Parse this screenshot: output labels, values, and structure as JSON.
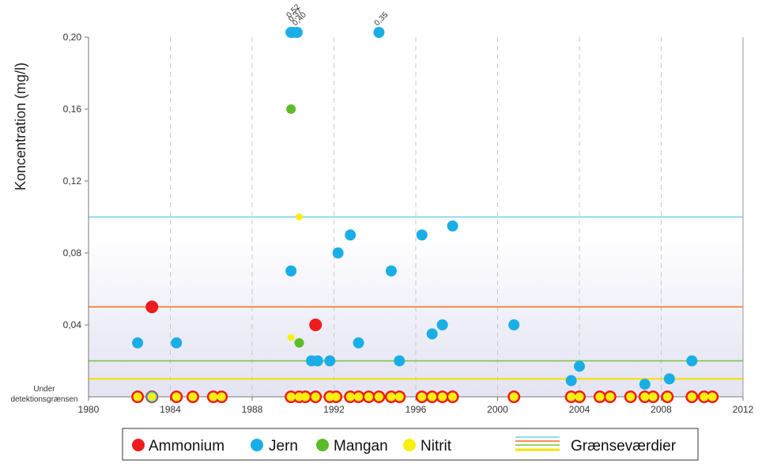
{
  "chart_data": {
    "type": "scatter",
    "ylabel": "Koncentration (mg/l)",
    "xlabel": "",
    "xlim": [
      1980,
      2012
    ],
    "ylim": [
      0,
      0.2
    ],
    "xticks": [
      1980,
      1984,
      1988,
      1992,
      1996,
      2000,
      2004,
      2008,
      2012
    ],
    "xtick_labels": [
      "1980",
      "1984",
      "1988",
      "1992",
      "1996",
      "2000",
      "2004",
      "2008",
      "2012"
    ],
    "yticks": [
      0.04,
      0.08,
      0.12,
      0.16,
      0.2
    ],
    "ytick_labels": [
      "0,04",
      "0,08",
      "0,12",
      "0,16",
      "0,20"
    ],
    "below_detection_label": [
      "Under",
      "detektionsgrænsen"
    ],
    "grid": "vertical dashed",
    "background_gradient": "light lavender below 0.05 fading upward",
    "outlier_labels": [
      {
        "x": 1989.9,
        "text": "0,52"
      },
      {
        "x": 1990.0,
        "text": "0,37"
      },
      {
        "x": 1990.2,
        "text": "0,40"
      },
      {
        "x": 1994.2,
        "text": "0,35"
      }
    ],
    "thresholds": [
      {
        "name": "Jern",
        "value": 0.1,
        "color": "#6fcfe6"
      },
      {
        "name": "Ammonium",
        "value": 0.05,
        "color": "#ff6a1a"
      },
      {
        "name": "Mangan",
        "value": 0.02,
        "color": "#7cc13a"
      },
      {
        "name": "Nitrit",
        "value": 0.01,
        "color": "#f5e100"
      }
    ],
    "series": [
      {
        "name": "Ammonium",
        "color": "#ee1c1c",
        "points": [
          [
            1983.1,
            0.05
          ],
          [
            1991.1,
            0.04
          ]
        ],
        "below_detection": [
          1982.4,
          1983.1,
          1984.3,
          1985.1,
          1986.1,
          1986.5,
          1989.9,
          1990.3,
          1990.6,
          1991.1,
          1991.8,
          1992.1,
          1992.8,
          1993.2,
          1993.7,
          1994.2,
          1994.8,
          1995.2,
          1996.3,
          1996.8,
          1997.3,
          1997.8,
          2000.8,
          2003.6,
          2004.0,
          2005.0,
          2005.5,
          2006.5,
          2007.2,
          2007.6,
          2008.3,
          2009.5,
          2010.1,
          2010.5
        ]
      },
      {
        "name": "Jern",
        "color": "#1aaee6",
        "points": [
          [
            1982.4,
            0.03
          ],
          [
            1984.3,
            0.03
          ],
          [
            1989.9,
            0.07
          ],
          [
            1990.9,
            0.02
          ],
          [
            1991.2,
            0.02
          ],
          [
            1991.8,
            0.02
          ],
          [
            1992.2,
            0.08
          ],
          [
            1992.8,
            0.09
          ],
          [
            1993.2,
            0.03
          ],
          [
            1994.8,
            0.07
          ],
          [
            1995.2,
            0.02
          ],
          [
            1996.3,
            0.09
          ],
          [
            1996.8,
            0.035
          ],
          [
            1997.3,
            0.04
          ],
          [
            1997.8,
            0.095
          ],
          [
            2000.8,
            0.04
          ],
          [
            2003.6,
            0.009
          ],
          [
            2004.0,
            0.017
          ],
          [
            2007.2,
            0.007
          ],
          [
            2008.4,
            0.01
          ],
          [
            2009.5,
            0.02
          ]
        ],
        "outliers": [
          [
            1989.9,
            0.52
          ],
          [
            1990.0,
            0.37
          ],
          [
            1990.2,
            0.4
          ],
          [
            1994.2,
            0.35
          ]
        ],
        "below_detection": [
          1983.1
        ]
      },
      {
        "name": "Mangan",
        "color": "#5cbb2a",
        "points": [
          [
            1989.9,
            0.16
          ],
          [
            1990.3,
            0.03
          ]
        ],
        "below_detection": []
      },
      {
        "name": "Nitrit",
        "color": "#f7ef10",
        "points": [
          [
            1990.3,
            0.1
          ],
          [
            1989.9,
            0.033
          ]
        ],
        "below_detection": [
          1982.4,
          1983.1,
          1984.3,
          1985.1,
          1986.1,
          1986.5,
          1989.9,
          1990.3,
          1990.6,
          1991.1,
          1991.8,
          1992.1,
          1992.8,
          1993.2,
          1993.7,
          1994.2,
          1994.8,
          1995.2,
          1996.3,
          1996.8,
          1997.3,
          1997.8,
          2000.8,
          2003.6,
          2004.0,
          2005.0,
          2005.5,
          2006.5,
          2007.2,
          2007.6,
          2008.3,
          2009.5,
          2010.1,
          2010.5
        ]
      }
    ],
    "legend": {
      "placement": "bottom",
      "items": [
        {
          "label": "Ammonium",
          "color": "#ee1c1c"
        },
        {
          "label": "Jern",
          "color": "#1aaee6"
        },
        {
          "label": "Mangan",
          "color": "#5cbb2a"
        },
        {
          "label": "Nitrit",
          "color": "#f7ef10"
        }
      ],
      "threshold_label": "Grænseværdier"
    }
  }
}
